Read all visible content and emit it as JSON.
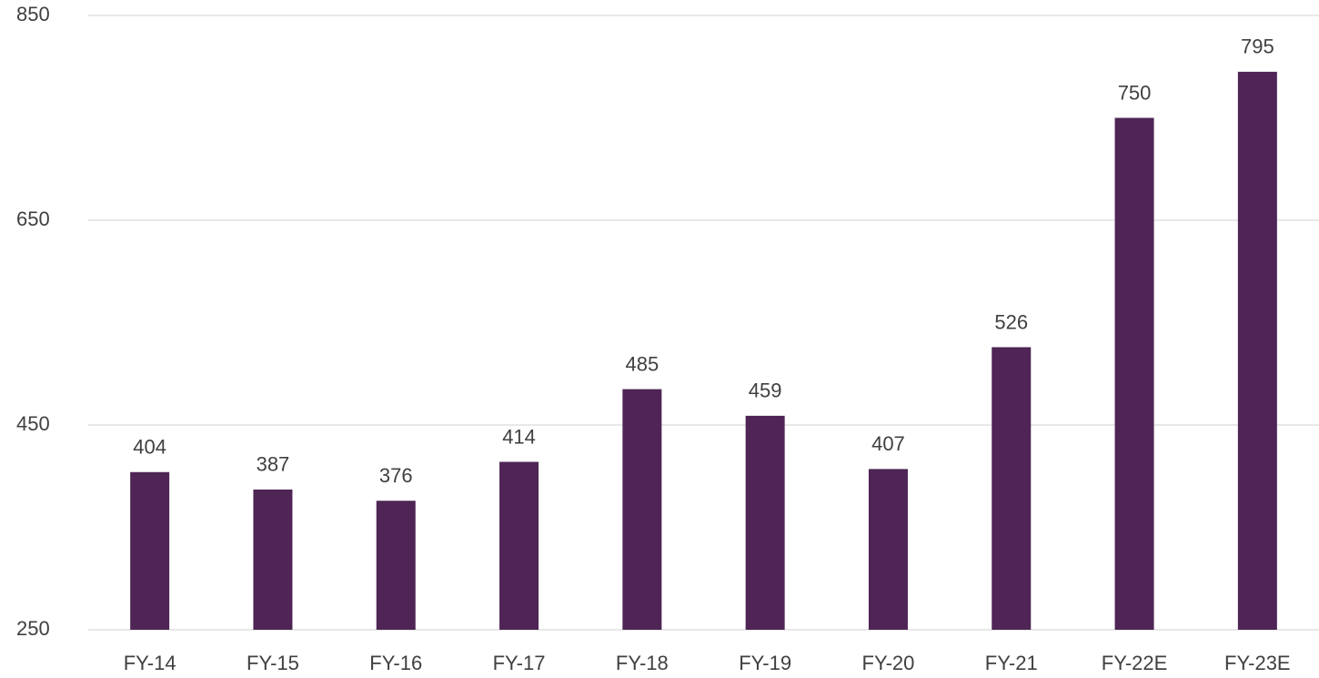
{
  "chart_data": {
    "type": "bar",
    "categories": [
      "FY-14",
      "FY-15",
      "FY-16",
      "FY-17",
      "FY-18",
      "FY-19",
      "FY-20",
      "FY-21",
      "FY-22E",
      "FY-23E"
    ],
    "values": [
      404,
      387,
      376,
      414,
      485,
      459,
      407,
      526,
      750,
      795
    ],
    "color": "#4e2555",
    "ylim": [
      250,
      850
    ],
    "yticks": [
      250,
      450,
      650,
      850
    ],
    "grid": true
  }
}
